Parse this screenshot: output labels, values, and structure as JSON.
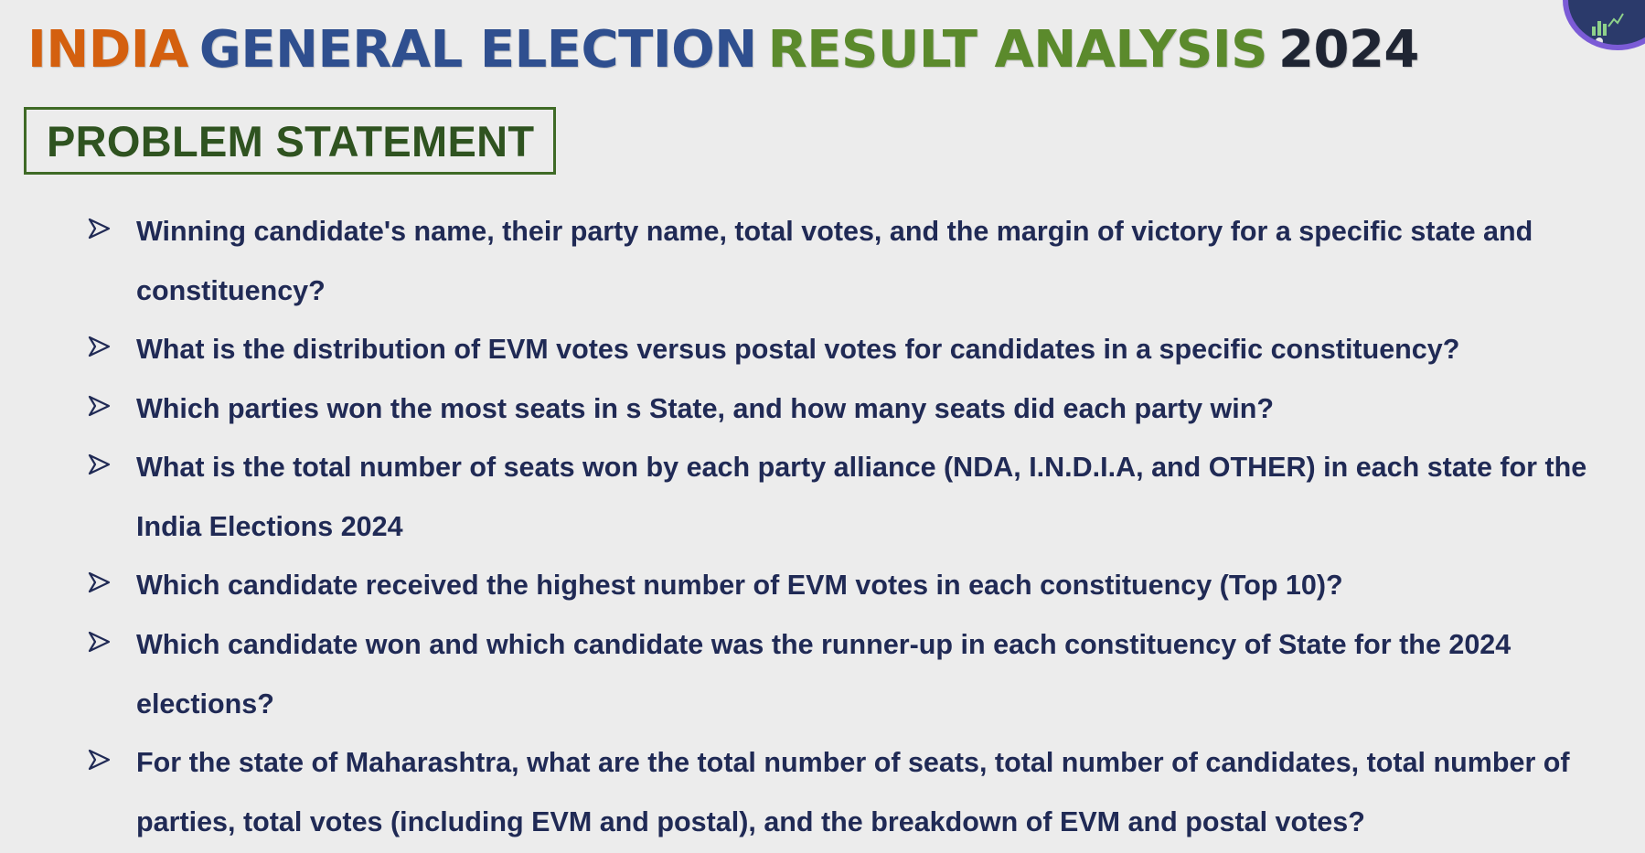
{
  "title": {
    "india": "INDIA",
    "general_election": "GENERAL ELECTION",
    "result_analysis": "RESULT ANALYSIS",
    "year": "2024"
  },
  "section_heading": "PROBLEM STATEMENT",
  "colors": {
    "india": "#d4600f",
    "general_election": "#2f4f8f",
    "result_analysis": "#5b8a2c",
    "year": "#1f2533",
    "heading_border": "#3f6a26",
    "heading_text": "#2f5320",
    "question_text": "#202a55",
    "background": "#ececec"
  },
  "bullet_icon": "arrow-bullet-icon",
  "corner_icon": "analytics-logo-icon",
  "questions": [
    "Winning candidate's name, their party name, total votes, and the margin of victory for a specific state and constituency?",
    "What is the distribution of EVM votes versus postal votes for candidates in a specific constituency?",
    "Which parties won the most seats in s State, and how many seats did each party win?",
    "What is the total number of seats won by each party alliance (NDA, I.N.D.I.A, and OTHER) in each state for the India Elections 2024",
    "Which candidate received the highest number of EVM votes in each constituency (Top 10)?",
    "Which candidate won and which candidate was the runner-up in each constituency of State for the 2024 elections?",
    "For the state of Maharashtra, what are the total number of seats, total number of candidates, total number of parties, total votes (including EVM and postal), and the breakdown of EVM and postal votes?"
  ]
}
